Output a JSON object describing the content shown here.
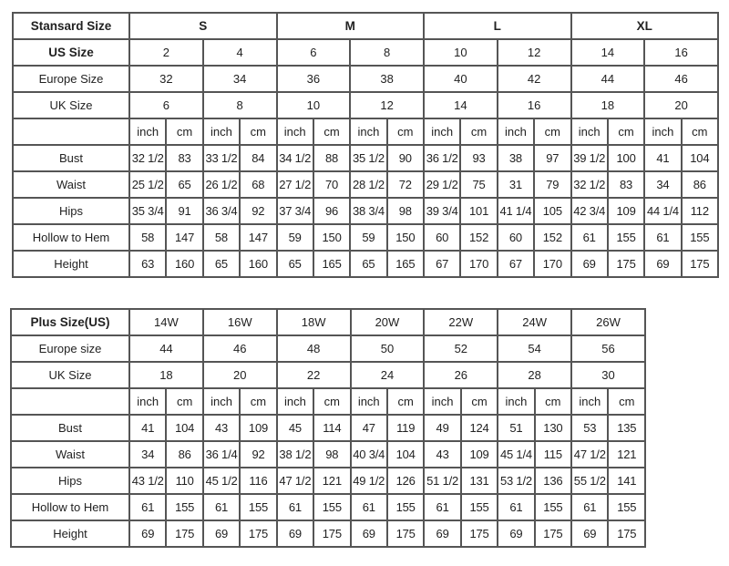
{
  "standard_table": {
    "header_label": "Stansard Size",
    "groups": [
      "S",
      "M",
      "L",
      "XL"
    ],
    "us_size": {
      "label": "US Size",
      "values": [
        "2",
        "4",
        "6",
        "8",
        "10",
        "12",
        "14",
        "16"
      ]
    },
    "europe_size": {
      "label": "Europe Size",
      "values": [
        "32",
        "34",
        "36",
        "38",
        "40",
        "42",
        "44",
        "46"
      ]
    },
    "uk_size": {
      "label": "UK Size",
      "values": [
        "6",
        "8",
        "10",
        "12",
        "14",
        "16",
        "18",
        "20"
      ]
    },
    "units": [
      "inch",
      "cm"
    ],
    "measurements": [
      {
        "label": "Bust",
        "values": [
          "32 1/2",
          "83",
          "33 1/2",
          "84",
          "34 1/2",
          "88",
          "35 1/2",
          "90",
          "36 1/2",
          "93",
          "38",
          "97",
          "39 1/2",
          "100",
          "41",
          "104"
        ]
      },
      {
        "label": "Waist",
        "values": [
          "25 1/2",
          "65",
          "26 1/2",
          "68",
          "27 1/2",
          "70",
          "28 1/2",
          "72",
          "29 1/2",
          "75",
          "31",
          "79",
          "32 1/2",
          "83",
          "34",
          "86"
        ]
      },
      {
        "label": "Hips",
        "values": [
          "35 3/4",
          "91",
          "36 3/4",
          "92",
          "37 3/4",
          "96",
          "38 3/4",
          "98",
          "39 3/4",
          "101",
          "41 1/4",
          "105",
          "42 3/4",
          "109",
          "44 1/4",
          "112"
        ]
      },
      {
        "label": "Hollow to Hem",
        "values": [
          "58",
          "147",
          "58",
          "147",
          "59",
          "150",
          "59",
          "150",
          "60",
          "152",
          "60",
          "152",
          "61",
          "155",
          "61",
          "155"
        ]
      },
      {
        "label": "Height",
        "values": [
          "63",
          "160",
          "65",
          "160",
          "65",
          "165",
          "65",
          "165",
          "67",
          "170",
          "67",
          "170",
          "69",
          "175",
          "69",
          "175"
        ]
      }
    ]
  },
  "plus_table": {
    "header_label": "Plus Size(US)",
    "sizes": [
      "14W",
      "16W",
      "18W",
      "20W",
      "22W",
      "24W",
      "26W"
    ],
    "europe_size": {
      "label": "Europe size",
      "values": [
        "44",
        "46",
        "48",
        "50",
        "52",
        "54",
        "56"
      ]
    },
    "uk_size": {
      "label": "UK Size",
      "values": [
        "18",
        "20",
        "22",
        "24",
        "26",
        "28",
        "30"
      ]
    },
    "units": [
      "inch",
      "cm"
    ],
    "measurements": [
      {
        "label": "Bust",
        "values": [
          "41",
          "104",
          "43",
          "109",
          "45",
          "114",
          "47",
          "119",
          "49",
          "124",
          "51",
          "130",
          "53",
          "135"
        ]
      },
      {
        "label": "Waist",
        "values": [
          "34",
          "86",
          "36 1/4",
          "92",
          "38 1/2",
          "98",
          "40 3/4",
          "104",
          "43",
          "109",
          "45 1/4",
          "115",
          "47 1/2",
          "121"
        ]
      },
      {
        "label": "Hips",
        "values": [
          "43 1/2",
          "110",
          "45 1/2",
          "116",
          "47 1/2",
          "121",
          "49 1/2",
          "126",
          "51 1/2",
          "131",
          "53 1/2",
          "136",
          "55 1/2",
          "141"
        ]
      },
      {
        "label": "Hollow to Hem",
        "values": [
          "61",
          "155",
          "61",
          "155",
          "61",
          "155",
          "61",
          "155",
          "61",
          "155",
          "61",
          "155",
          "61",
          "155"
        ]
      },
      {
        "label": "Height",
        "values": [
          "69",
          "175",
          "69",
          "175",
          "69",
          "175",
          "69",
          "175",
          "69",
          "175",
          "69",
          "175",
          "69",
          "175"
        ]
      }
    ]
  }
}
